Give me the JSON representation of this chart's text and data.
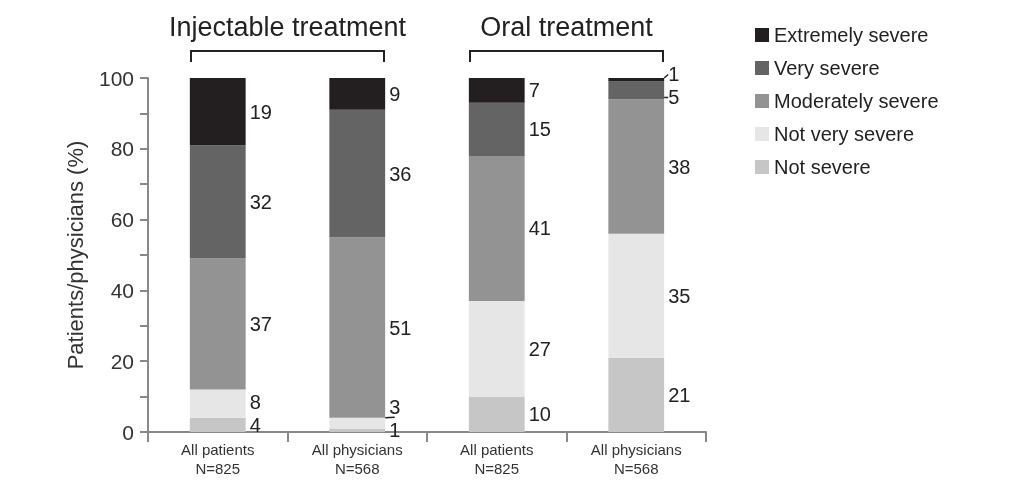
{
  "chart_data": {
    "type": "bar",
    "stacked": true,
    "ylabel": "Patients/physicians (%)",
    "categories": [
      "All patients\nN=825",
      "All physicians\nN=568",
      "All patients\nN=825",
      "All physicians\nN=568"
    ],
    "series": [
      {
        "name": "Not severe",
        "color": "#c6c6c6",
        "values": [
          4,
          1,
          10,
          21
        ]
      },
      {
        "name": "Not very severe",
        "color": "#e6e6e6",
        "values": [
          8,
          3,
          27,
          35
        ]
      },
      {
        "name": "Moderately severe",
        "color": "#939393",
        "values": [
          37,
          51,
          41,
          38
        ]
      },
      {
        "name": "Very severe",
        "color": "#646464",
        "values": [
          32,
          36,
          15,
          5
        ]
      },
      {
        "name": "Extremely severe",
        "color": "#231f20",
        "values": [
          19,
          9,
          7,
          1
        ]
      }
    ],
    "ylim": [
      0,
      100
    ],
    "yticks": [
      0,
      {
        "value": 10,
        "label": null
      },
      20,
      {
        "value": 30,
        "label": null
      },
      40,
      {
        "value": 50,
        "label": null
      },
      60,
      {
        "value": 70,
        "label": null
      },
      80,
      {
        "value": 90,
        "label": null
      },
      100
    ],
    "annotations": [
      "Injectable treatment",
      "Oral treatment"
    ],
    "data_labels": true,
    "grid": false,
    "legend": "top right"
  }
}
